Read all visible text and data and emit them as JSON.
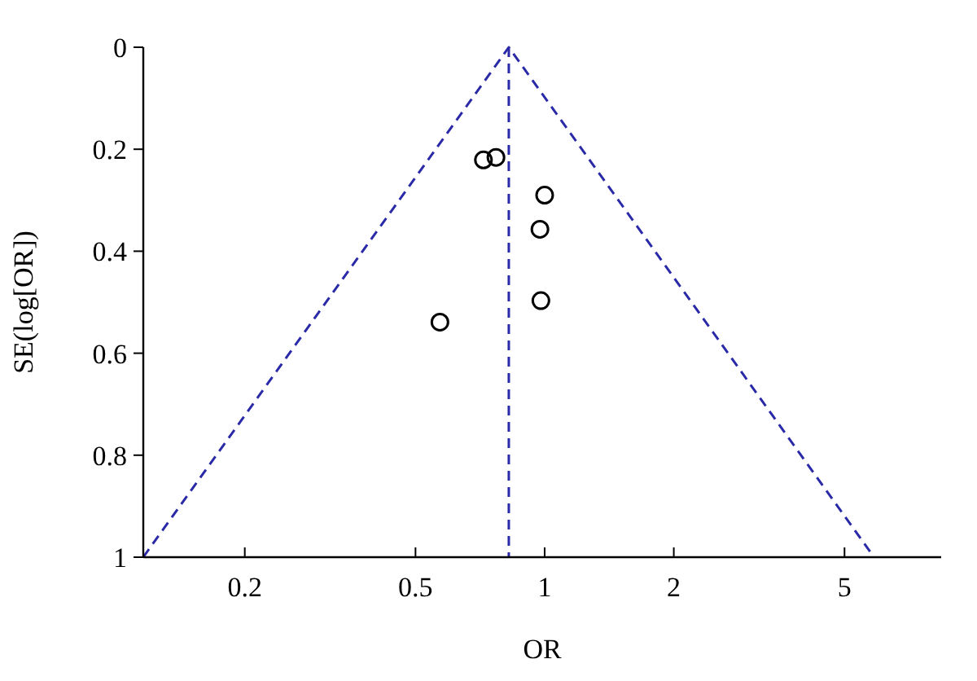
{
  "chart_data": {
    "type": "scatter",
    "xlabel": "OR",
    "ylabel": "SE(log[OR])",
    "log": "x",
    "xlim": [
      0.116,
      8.4
    ],
    "ylim": [
      1,
      0
    ],
    "xticks": [
      0.2,
      0.5,
      1,
      2,
      5
    ],
    "yticks": [
      0,
      0.2,
      0.4,
      0.6,
      0.8,
      1
    ],
    "grid": false,
    "series": [
      {
        "color": "#000000",
        "marker": "circle",
        "x": [
          0.72,
          0.77,
          1.0,
          0.975,
          0.98,
          0.57
        ],
        "values": [
          0.221,
          0.216,
          0.29,
          0.357,
          0.497,
          0.539
        ]
      },
      {
        "type": "line",
        "color": "#2a2aa8",
        "line_style": "dashed",
        "marker": "none",
        "x": [
          0.116,
          0.825,
          5.86
        ],
        "values": [
          1,
          0,
          1
        ]
      }
    ],
    "ref_lines": [
      {
        "axis": "x",
        "value": 0.825,
        "color": "#2a2aa8",
        "line_style": "dashed"
      }
    ]
  }
}
